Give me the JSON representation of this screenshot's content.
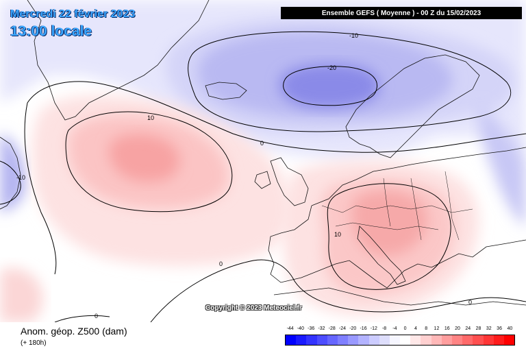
{
  "header": {
    "date": "Mercredi 22 février 2023",
    "local_time": "13:00 locale",
    "run_info": "Ensemble GEFS  ( Moyenne )  - 00 Z du 15/02/2023"
  },
  "map": {
    "copyright": "Copyright © 2023 Meteociel.fr",
    "contour_labels": [
      "-10",
      "-20",
      "10",
      "0",
      "-10",
      "10",
      "0",
      "0",
      "0"
    ]
  },
  "footer": {
    "variable_title": "Anom. géop. Z500 (dam)",
    "lead_time": "(+ 180h)"
  },
  "scale": {
    "ticks": [
      "-44",
      "-40",
      "-36",
      "-32",
      "-28",
      "-24",
      "-20",
      "-16",
      "-12",
      "-8",
      "-4",
      "0",
      "4",
      "8",
      "12",
      "16",
      "20",
      "24",
      "28",
      "32",
      "36",
      "40"
    ],
    "colors": [
      "#0000ff",
      "#1a1aff",
      "#3333ff",
      "#4d4dff",
      "#6666ff",
      "#7f7fff",
      "#9999ff",
      "#b3b3ff",
      "#ccccff",
      "#dedefc",
      "#f6f6ff",
      "#ffffff",
      "#ffe8e8",
      "#ffd0d0",
      "#ffb8b8",
      "#ff9e9e",
      "#ff8484",
      "#ff6a6a",
      "#ff5050",
      "#ff3636",
      "#ff1c1c",
      "#ff0000"
    ]
  }
}
